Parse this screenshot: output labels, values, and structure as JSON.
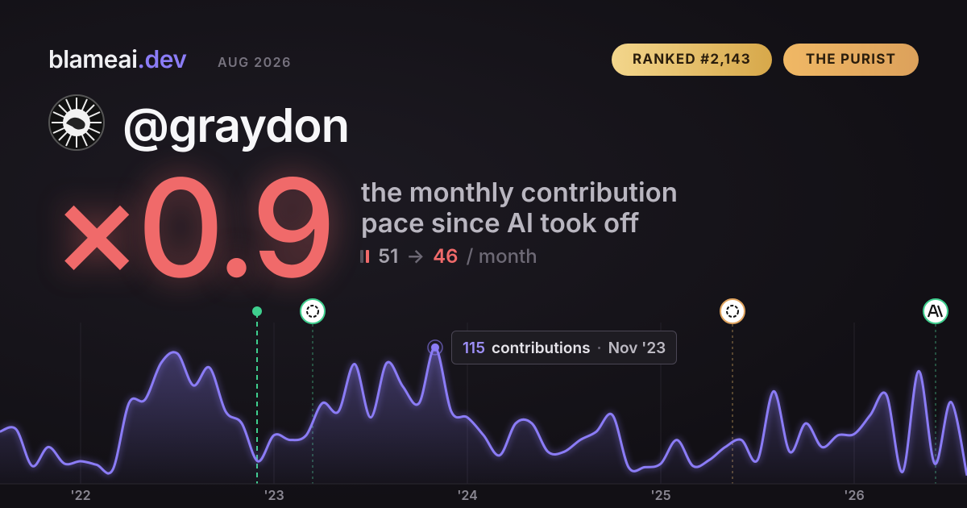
{
  "header": {
    "brand": "blameai",
    "brand_suffix": ".dev",
    "date": "AUG 2026",
    "rank": "RANKED #2,143",
    "persona": "THE PURIST"
  },
  "profile": {
    "handle": "@graydon"
  },
  "headline": {
    "multiplier": "×0.9",
    "tagline": [
      "the monthly contribution",
      "pace since AI took off"
    ],
    "before": "51",
    "arrow": "→",
    "after": "46",
    "unit": "/ month"
  },
  "tooltip": {
    "label": "contributions",
    "date": "Nov '23"
  },
  "chart_data": {
    "type": "line",
    "x": [
      0,
      1,
      2,
      3,
      4,
      5,
      6,
      7,
      8,
      9,
      10,
      11,
      12,
      13,
      14,
      15,
      16,
      17,
      18,
      19,
      20,
      21,
      22,
      23,
      24,
      25,
      26,
      27,
      28,
      29,
      30,
      31,
      32,
      33,
      34,
      35,
      36,
      37,
      38,
      39,
      40,
      41,
      42,
      43,
      44,
      45,
      46,
      47,
      48,
      49,
      50,
      51,
      52,
      53,
      54,
      55,
      56,
      57,
      58,
      59,
      60
    ],
    "series": [
      {
        "name": "contributions",
        "color": "#8b7cf6",
        "values": [
          44,
          46,
          15,
          31,
          17,
          19,
          16,
          12,
          68,
          71,
          102,
          110,
          83,
          98,
          61,
          51,
          19,
          41,
          37,
          41,
          68,
          61,
          101,
          56,
          102,
          82,
          68,
          115,
          61,
          56,
          41,
          24,
          51,
          51,
          27,
          27,
          37,
          44,
          58,
          14,
          14,
          17,
          37,
          15,
          20,
          31,
          37,
          20,
          78,
          27,
          51,
          31,
          41,
          42,
          58,
          75,
          10,
          95,
          17,
          69,
          7
        ]
      }
    ],
    "xlim": [
      0,
      60
    ],
    "xticks": [
      {
        "value": 5,
        "label": "'22"
      },
      {
        "value": 17,
        "label": "'23"
      },
      {
        "value": 29,
        "label": "'24"
      },
      {
        "value": 41,
        "label": "'25"
      },
      {
        "value": 53,
        "label": "'26"
      }
    ],
    "ylim": [
      0,
      136
    ],
    "grid": true
  }
}
